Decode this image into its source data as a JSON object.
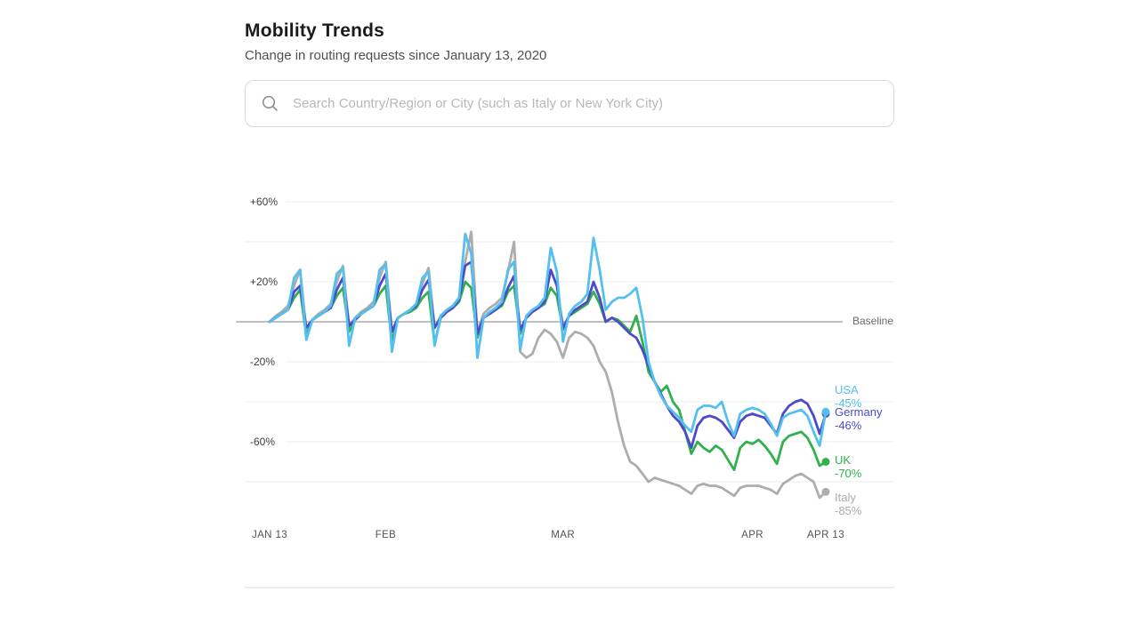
{
  "header": {
    "title": "Mobility Trends",
    "subtitle": "Change in routing requests since January 13, 2020"
  },
  "search": {
    "placeholder": "Search Country/Region or City (such as Italy or New York City)"
  },
  "chart_data": {
    "type": "line",
    "title": "Mobility Trends",
    "y_unit": "% change in routing requests vs baseline",
    "ylim": [
      -100,
      80
    ],
    "grid": true,
    "legend_position": "right-end-of-line",
    "points_span_days": 91,
    "x_start": "JAN 13",
    "x_end": "APR 13",
    "x_tick_labels": [
      {
        "label": "JAN 13",
        "day": 0
      },
      {
        "label": "FEB",
        "day": 19
      },
      {
        "label": "MAR",
        "day": 48
      },
      {
        "label": "APR",
        "day": 79
      },
      {
        "label": "APR 13",
        "day": 91
      }
    ],
    "y_tick_labels": [
      {
        "label": "+60%",
        "value": 60
      },
      {
        "label": "+20%",
        "value": 20
      },
      {
        "label": "-20%",
        "value": -20
      },
      {
        "label": "-60%",
        "value": -60
      }
    ],
    "gridlines": [
      60,
      40,
      20,
      -20,
      -40,
      -60,
      -80
    ],
    "baseline": {
      "value": 0,
      "label": "Baseline"
    },
    "series": [
      {
        "name": "USA",
        "end_label": "-45%",
        "end_value": -45,
        "color": "#54C0F0",
        "label_anchor": -37.5,
        "values": [
          0,
          2,
          4,
          6,
          22,
          26,
          -9,
          1,
          3,
          5,
          8,
          24,
          27,
          -12,
          2,
          4,
          6,
          8,
          26,
          29,
          -15,
          2,
          4,
          6,
          9,
          22,
          25,
          -12,
          3,
          6,
          8,
          12,
          44,
          34,
          -18,
          2,
          5,
          7,
          10,
          26,
          30,
          -14,
          3,
          6,
          8,
          12,
          37,
          25,
          -10,
          4,
          8,
          10,
          14,
          42,
          26,
          6,
          10,
          12,
          12,
          14,
          17,
          2,
          -20,
          -30,
          -37,
          -42,
          -45,
          -48,
          -52,
          -55,
          -44,
          -42,
          -42,
          -43,
          -40,
          -50,
          -57,
          -46,
          -44,
          -43,
          -44,
          -46,
          -51,
          -57,
          -48,
          -46,
          -45,
          -44,
          -47,
          -55,
          -62,
          -45
        ]
      },
      {
        "name": "Germany",
        "end_label": "-46%",
        "end_value": -46,
        "color": "#4C4AC8",
        "label_anchor": -48.5,
        "values": [
          0,
          2,
          4,
          6,
          15,
          18,
          -3,
          1,
          3,
          5,
          7,
          16,
          22,
          -2,
          1,
          4,
          6,
          8,
          18,
          24,
          -5,
          2,
          4,
          6,
          8,
          16,
          21,
          -3,
          2,
          5,
          7,
          11,
          28,
          30,
          -6,
          2,
          4,
          6,
          9,
          17,
          23,
          -4,
          2,
          5,
          7,
          10,
          26,
          18,
          -3,
          3,
          6,
          8,
          10,
          20,
          12,
          0,
          2,
          0,
          -3,
          -6,
          -8,
          -14,
          -22,
          -30,
          -36,
          -42,
          -47,
          -50,
          -55,
          -63,
          -52,
          -48,
          -47,
          -48,
          -50,
          -54,
          -58,
          -50,
          -47,
          -46,
          -47,
          -48,
          -52,
          -56,
          -46,
          -42,
          -40,
          -39,
          -41,
          -47,
          -56,
          -46
        ]
      },
      {
        "name": "UK",
        "end_label": "-70%",
        "end_value": -70,
        "color": "#32B04E",
        "label_anchor": -72.5,
        "values": [
          0,
          2,
          4,
          6,
          12,
          16,
          -7,
          1,
          3,
          5,
          7,
          13,
          17,
          -5,
          1,
          4,
          6,
          8,
          14,
          18,
          -10,
          2,
          4,
          5,
          7,
          12,
          15,
          -11,
          2,
          5,
          7,
          10,
          20,
          17,
          -8,
          2,
          4,
          6,
          8,
          15,
          18,
          -6,
          2,
          5,
          7,
          9,
          17,
          13,
          -4,
          3,
          5,
          7,
          9,
          15,
          9,
          0,
          2,
          1,
          -2,
          -5,
          3,
          -10,
          -25,
          -30,
          -35,
          -32,
          -40,
          -44,
          -55,
          -66,
          -60,
          -63,
          -65,
          -62,
          -64,
          -69,
          -74,
          -63,
          -60,
          -61,
          -59,
          -62,
          -66,
          -71,
          -60,
          -57,
          -56,
          -55,
          -58,
          -64,
          -72,
          -70
        ]
      },
      {
        "name": "Italy",
        "end_label": "-85%",
        "end_value": -85,
        "color": "#ADADAD",
        "label_anchor": -91,
        "values": [
          0,
          3,
          5,
          8,
          18,
          26,
          -4,
          1,
          4,
          6,
          9,
          20,
          28,
          -2,
          2,
          5,
          7,
          10,
          22,
          30,
          -5,
          2,
          4,
          6,
          9,
          19,
          27,
          -3,
          3,
          6,
          8,
          12,
          30,
          45,
          -5,
          4,
          7,
          9,
          12,
          25,
          40,
          -15,
          -18,
          -16,
          -8,
          -4,
          -6,
          -10,
          -18,
          -8,
          -5,
          -6,
          -8,
          -12,
          -20,
          -25,
          -35,
          -50,
          -62,
          -70,
          -72,
          -76,
          -80,
          -78,
          -79,
          -80,
          -81,
          -82,
          -84,
          -86,
          -82,
          -81,
          -82,
          -82,
          -83,
          -85,
          -87,
          -83,
          -82,
          -82,
          -82,
          -83,
          -84,
          -86,
          -81,
          -79,
          -77,
          -76,
          -78,
          -80,
          -88,
          -85
        ]
      }
    ],
    "colors": {
      "gridline": "#ececec",
      "baseline": "#9b9b9b",
      "usa": "#54C0F0",
      "germany": "#4C4AC8",
      "uk": "#32B04E",
      "italy": "#ADADAD"
    }
  }
}
